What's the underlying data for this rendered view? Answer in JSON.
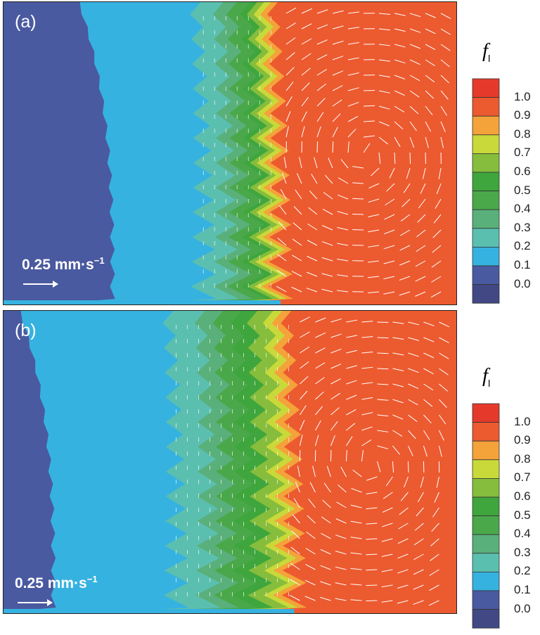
{
  "chart_data": [
    {
      "type": "heatmap",
      "panel_label": "(a)",
      "colorbar_title": "f",
      "colorbar_subscript": "l",
      "colorbar_ticks": [
        "1.0",
        "0.9",
        "0.8",
        "0.7",
        "0.6",
        "0.5",
        "0.4",
        "0.3",
        "0.2",
        "0.1",
        "0.0"
      ],
      "colorbar_colors": [
        "#e53a2b",
        "#ec5a2f",
        "#f4a23a",
        "#c9d93a",
        "#86bd3c",
        "#3ea63d",
        "#4aa84a",
        "#59b07a",
        "#5bbfb0",
        "#36b2e0",
        "#4a5aa0",
        "#414884"
      ],
      "scale_vector": {
        "value": "0.25 mm·s",
        "exponent": "−1"
      },
      "fronts": {
        "f00": 0.24,
        "f01": 0.37,
        "f02": 0.44,
        "f03": 0.49,
        "f05": 0.55,
        "f08": 0.58,
        "f10": 0.61
      }
    },
    {
      "type": "heatmap",
      "panel_label": "(b)",
      "colorbar_title": "f",
      "colorbar_subscript": "l",
      "colorbar_ticks": [
        "1.0",
        "0.9",
        "0.8",
        "0.7",
        "0.6",
        "0.5",
        "0.4",
        "0.3",
        "0.2",
        "0.1",
        "0.0"
      ],
      "colorbar_colors": [
        "#e53a2b",
        "#ec5a2f",
        "#f4a23a",
        "#c9d93a",
        "#86bd3c",
        "#3ea63d",
        "#4aa84a",
        "#59b07a",
        "#5bbfb0",
        "#36b2e0",
        "#4a5aa0",
        "#414884"
      ],
      "scale_vector": {
        "value": "0.25 mm·s",
        "exponent": "−1"
      },
      "fronts": {
        "f00": 0.11,
        "f01": 0.31,
        "f02": 0.38,
        "f03": 0.45,
        "f05": 0.53,
        "f08": 0.6,
        "f10": 0.64
      }
    }
  ]
}
